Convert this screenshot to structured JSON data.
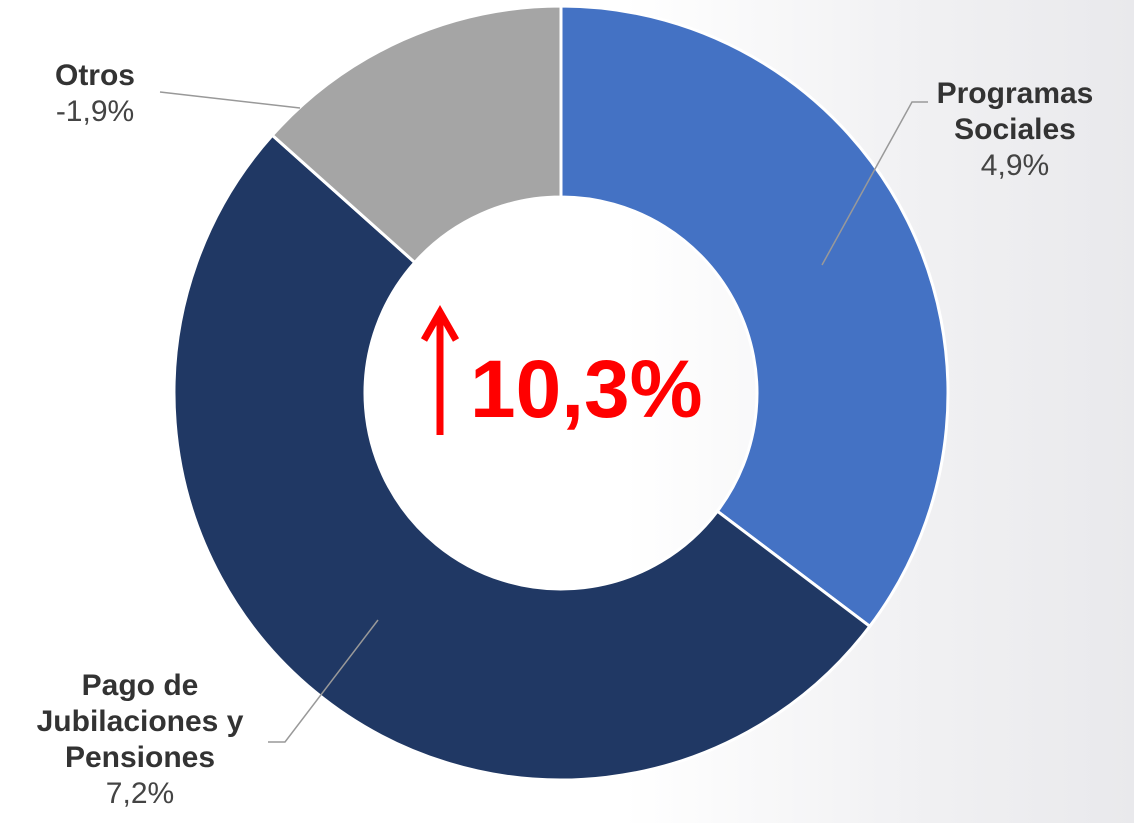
{
  "chart_data": {
    "type": "donut",
    "categories": [
      "Programas Sociales",
      "Pago de Jubilaciones y Pensiones",
      "Otros"
    ],
    "values": [
      35.3,
      51.3,
      13.4
    ],
    "colors": [
      "#4472c4",
      "#203864",
      "#a5a5a5"
    ],
    "growth_labels": [
      "4,9%",
      "7,2%",
      "-1,9%"
    ],
    "center_label": "10,3%"
  }
}
